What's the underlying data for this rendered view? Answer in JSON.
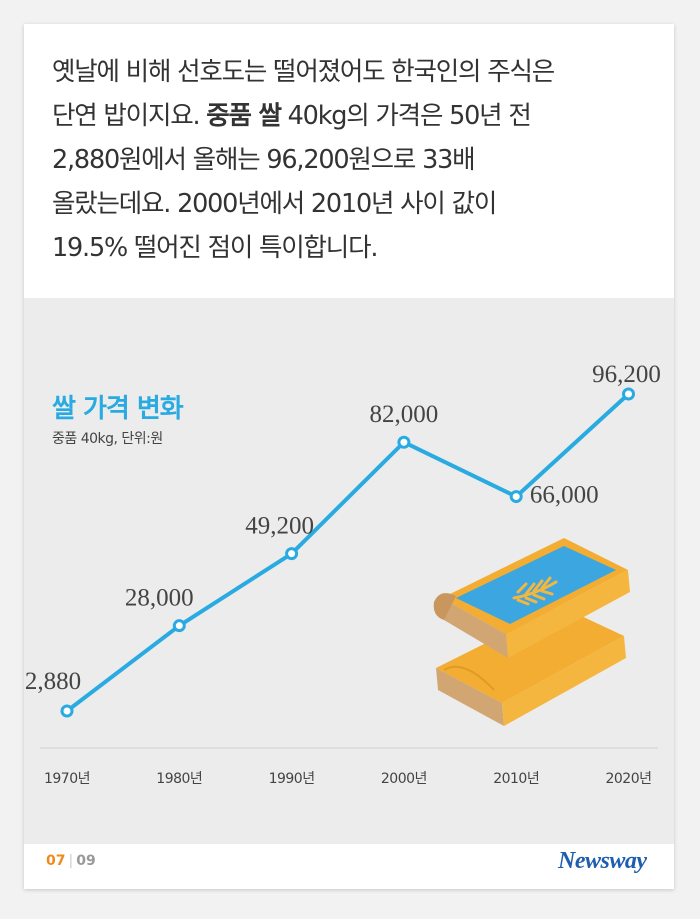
{
  "intro": {
    "line1": "옛날에 비해 선호도는 떨어졌어도 한국인의 주식은",
    "line2_a": "단연 밥이지요. ",
    "line2_bold": "중품 쌀",
    "line2_b": " 40kg의 가격은 50년 전",
    "line3": "2,880원에서 올해는 96,200원으로 33배",
    "line4": "올랐는데요. 2000년에서 2010년 사이 값이",
    "line5": "19.5% 떨어진 점이 특이합니다."
  },
  "chart_data": {
    "type": "line",
    "title": "쌀 가격 변화",
    "subtitle": "중품 40kg, 단위:원",
    "xlabel": "",
    "ylabel": "",
    "categories": [
      "1970년",
      "1980년",
      "1990년",
      "2000년",
      "2010년",
      "2020년"
    ],
    "values": [
      2880,
      28000,
      49200,
      82000,
      66000,
      96200
    ],
    "data_labels": [
      "2,880",
      "28,000",
      "49,200",
      "82,000",
      "66,000",
      "96,200"
    ],
    "ylim": [
      0,
      100000
    ],
    "grid": false,
    "line_color": "#29abe2"
  },
  "footer": {
    "page_current": "07",
    "page_total": "09",
    "logo": "Newsway"
  }
}
